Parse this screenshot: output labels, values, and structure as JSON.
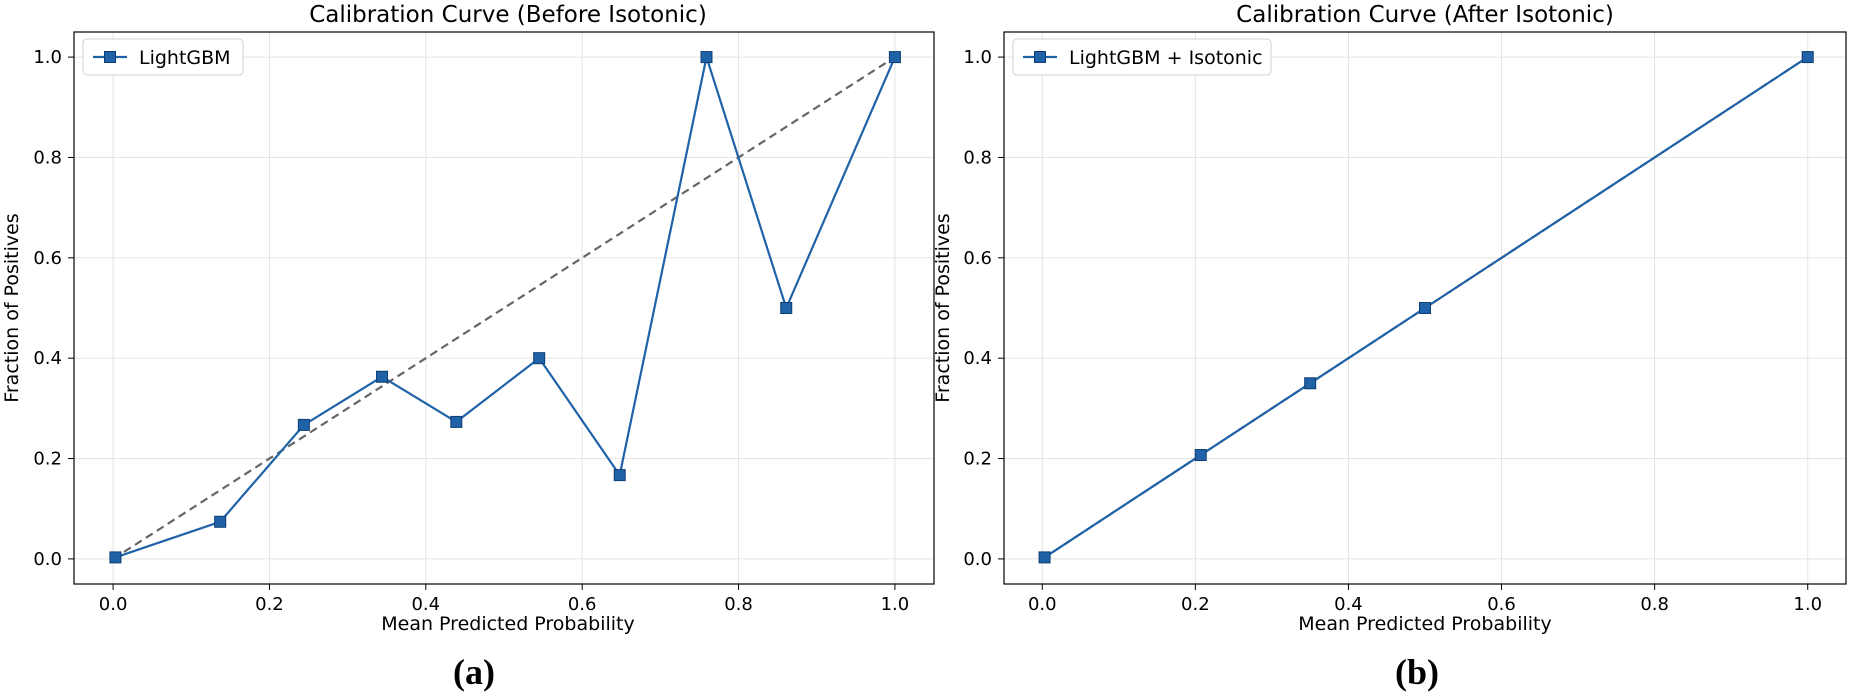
{
  "chart_data": [
    {
      "type": "line",
      "title": "Calibration Curve (Before Isotonic)",
      "xlabel": "Mean Predicted Probability",
      "ylabel": "Fraction of Positives",
      "xlim": [
        -0.05,
        1.05
      ],
      "ylim": [
        -0.05,
        1.05
      ],
      "xticks": [
        "0.0",
        "0.2",
        "0.4",
        "0.6",
        "0.8",
        "1.0"
      ],
      "yticks": [
        "0.0",
        "0.2",
        "0.4",
        "0.6",
        "0.8",
        "1.0"
      ],
      "grid": true,
      "legend_position": "top-left",
      "series": [
        {
          "name": "LightGBM",
          "color": "#1f62a8",
          "marker": "square",
          "x": [
            0.003,
            0.137,
            0.244,
            0.344,
            0.439,
            0.545,
            0.648,
            0.759,
            0.861,
            1.0
          ],
          "y": [
            0.003,
            0.074,
            0.267,
            0.363,
            0.273,
            0.4,
            0.167,
            1.0,
            0.5,
            1.0
          ]
        }
      ],
      "reference_line": {
        "style": "dashed",
        "color": "#666666",
        "x": [
          0,
          1
        ],
        "y": [
          0,
          1
        ]
      },
      "panel_label": "(a)"
    },
    {
      "type": "line",
      "title": "Calibration Curve (After Isotonic)",
      "xlabel": "Mean Predicted Probability",
      "ylabel": "Fraction of Positives",
      "xlim": [
        -0.05,
        1.05
      ],
      "ylim": [
        -0.05,
        1.05
      ],
      "xticks": [
        "0.0",
        "0.2",
        "0.4",
        "0.6",
        "0.8",
        "1.0"
      ],
      "yticks": [
        "0.0",
        "0.2",
        "0.4",
        "0.6",
        "0.8",
        "1.0"
      ],
      "grid": true,
      "legend_position": "top-left",
      "series": [
        {
          "name": "LightGBM + Isotonic",
          "color": "#1f62a8",
          "marker": "square",
          "x": [
            0.003,
            0.207,
            0.35,
            0.5,
            1.0
          ],
          "y": [
            0.003,
            0.207,
            0.35,
            0.5,
            1.0
          ]
        }
      ],
      "reference_line": {
        "style": "dashed",
        "color": "#666666",
        "x": [
          0,
          1
        ],
        "y": [
          0,
          1
        ]
      },
      "panel_label": "(b)"
    }
  ]
}
